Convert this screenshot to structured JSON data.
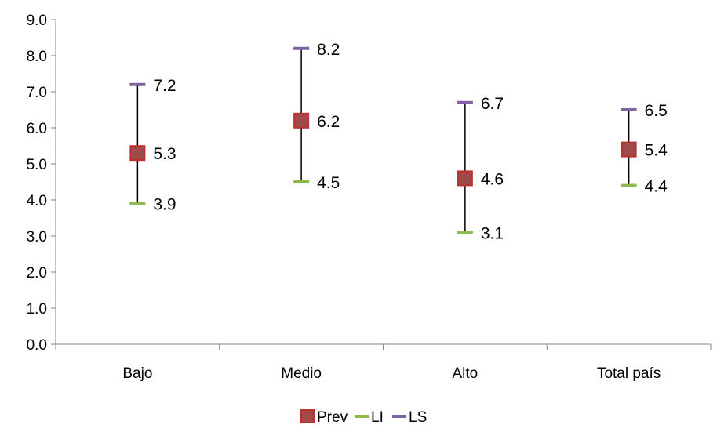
{
  "chart_data": {
    "type": "scatter",
    "title": "",
    "xlabel": "",
    "ylabel": "",
    "categories": [
      "Bajo",
      "Medio",
      "Alto",
      "Total país"
    ],
    "ylim": [
      0,
      9
    ],
    "yticks": [
      "0.0",
      "1.0",
      "2.0",
      "3.0",
      "4.0",
      "5.0",
      "6.0",
      "7.0",
      "8.0",
      "9.0"
    ],
    "grid": false,
    "legend_position": "bottom",
    "series": [
      {
        "name": "Prev",
        "values": [
          5.3,
          6.2,
          4.6,
          5.4
        ],
        "labels": [
          "5.3",
          "6.2",
          "4.6",
          "5.4"
        ],
        "color": "#C0302A",
        "marker": "square"
      },
      {
        "name": "LI",
        "values": [
          3.9,
          4.5,
          3.1,
          4.4
        ],
        "labels": [
          "3.9",
          "4.5",
          "3.1",
          "4.4"
        ],
        "color": "#8DB94D",
        "marker": "dash"
      },
      {
        "name": "LS",
        "values": [
          7.2,
          8.2,
          6.7,
          6.5
        ],
        "labels": [
          "7.2",
          "8.2",
          "6.7",
          "6.5"
        ],
        "color": "#8064A2",
        "marker": "dash"
      }
    ]
  }
}
